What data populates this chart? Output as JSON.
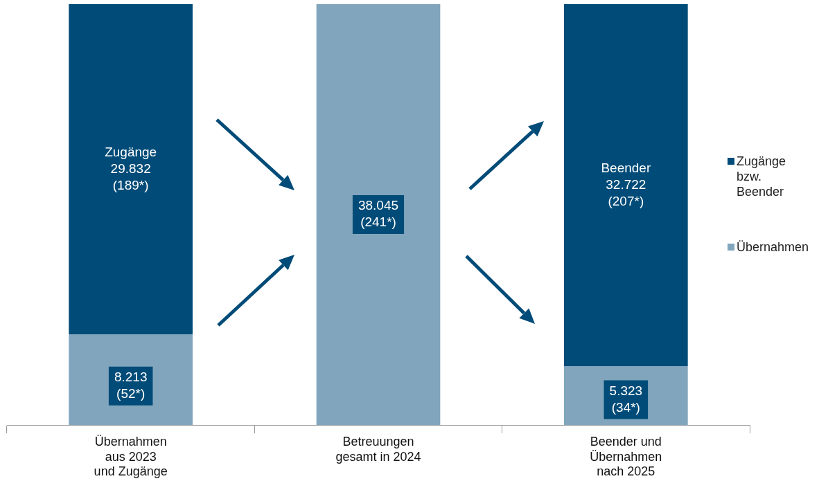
{
  "chart_data": {
    "type": "bar",
    "stacked": true,
    "legend": "right",
    "categories": [
      "Übernahmen\naus 2023\nund Zugänge",
      "Betreuungen\ngesamt in 2024",
      "Beender und\nÜbernahmen\nnach 2025"
    ],
    "series": [
      {
        "name": "Übernahmen",
        "color": "#80a5bc",
        "values": [
          8213,
          38045,
          5323
        ],
        "value_labels": [
          "8.213\n(52*)",
          "38.045\n(241*)",
          "5.323\n(34*)"
        ]
      },
      {
        "name": "Zugänge bzw. Beender",
        "color": "#004b78",
        "values": [
          29832,
          null,
          32722
        ],
        "value_labels": [
          "Zugänge\n29.832\n(189*)",
          null,
          "Beender\n32.722\n(207*)"
        ]
      }
    ]
  }
}
